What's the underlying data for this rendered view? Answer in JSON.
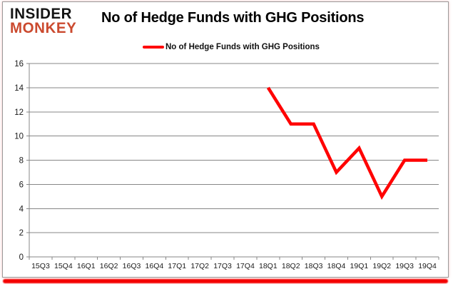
{
  "branding": {
    "logo_line1": "INSIDER",
    "logo_line2": "MONKEY",
    "logo_color": "#cb4a2f"
  },
  "header": {
    "title": "No of Hedge Funds with GHG Positions"
  },
  "legend": {
    "label": "No of Hedge Funds with GHG Positions",
    "line_color": "#ff0000"
  },
  "colors": {
    "series_red": "#ff0000",
    "gridline_gray": "#878787",
    "axis_text": "#1a1a1a",
    "brand_red_bar": "#f40000",
    "card_border": "#9a9a9a"
  },
  "chart_data": {
    "type": "line",
    "title": "No of Hedge Funds with GHG Positions",
    "categories": [
      "15Q3",
      "15Q4",
      "16Q1",
      "16Q2",
      "16Q3",
      "16Q4",
      "17Q1",
      "17Q2",
      "17Q3",
      "17Q4",
      "18Q1",
      "18Q2",
      "18Q3",
      "18Q4",
      "19Q1",
      "19Q2",
      "19Q3",
      "19Q4"
    ],
    "series": [
      {
        "name": "No of Hedge Funds with GHG Positions",
        "color": "#ff0000",
        "values": [
          null,
          null,
          null,
          null,
          null,
          null,
          null,
          null,
          null,
          null,
          14,
          11,
          11,
          7,
          9,
          5,
          8,
          8
        ]
      }
    ],
    "xlabel": "",
    "ylabel": "",
    "ylim": [
      0,
      16
    ],
    "ytick_step": 2,
    "grid": true,
    "legend_position": "top-center"
  }
}
